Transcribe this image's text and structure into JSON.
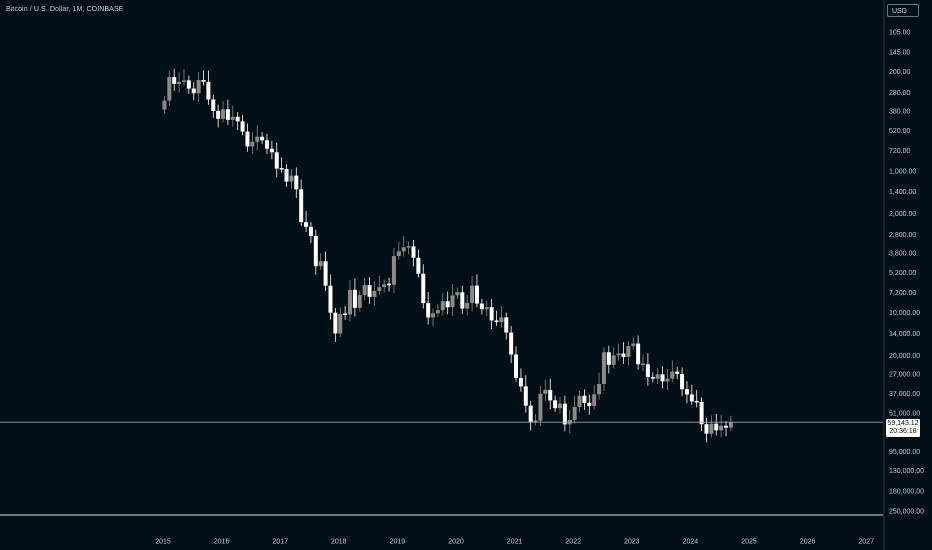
{
  "header": {
    "title": "Bitcoin / U.S. Dollar, 1M, COINBASE",
    "currency_button": "USD"
  },
  "price_tag": {
    "price": "59,143.12",
    "countdown": "20:36:18"
  },
  "colors": {
    "background": "#020f14",
    "candle_up": "#ffffff",
    "candle_down": "#8a8a8a",
    "price_line": "#9aa3a6"
  },
  "chart_data": {
    "type": "candlestick",
    "interval": "1M",
    "y_scale": "log",
    "y_axis_inverted": true,
    "current_price": 59143.12,
    "x_ticks": [
      "2015",
      "2016",
      "2017",
      "2018",
      "2019",
      "2020",
      "2021",
      "2022",
      "2023",
      "2024",
      "2025",
      "2026",
      "2027"
    ],
    "y_ticks": [
      "105.00",
      "145.00",
      "200.00",
      "280.00",
      "380.00",
      "520.00",
      "720.00",
      "1,000.00",
      "1,400.00",
      "2,000.00",
      "2,800.00",
      "3,800.00",
      "5,200.00",
      "7,200.00",
      "10,000.00",
      "14,000.00",
      "20,000.00",
      "27,000.00",
      "37,000.00",
      "51,000.00",
      "95,000.00",
      "130,000.00",
      "180,000.00",
      "250,000.00"
    ],
    "y_tick_values": [
      105,
      145,
      200,
      280,
      380,
      520,
      720,
      1000,
      1400,
      2000,
      2800,
      3800,
      5200,
      7200,
      10000,
      14000,
      20000,
      27000,
      37000,
      51000,
      95000,
      130000,
      180000,
      250000
    ],
    "start_year": 2015,
    "close": [
      320,
      218,
      244,
      236,
      230,
      263,
      284,
      229,
      236,
      314,
      378,
      430,
      368,
      437,
      416,
      448,
      529,
      673,
      624,
      575,
      609,
      698,
      740,
      964,
      970,
      1190,
      1080,
      1350,
      2300,
      2480,
      2880,
      4700,
      4340,
      6450,
      10000,
      14000,
      10200,
      10300,
      6900,
      9240,
      7500,
      6390,
      7730,
      7030,
      6600,
      6300,
      6340,
      3990,
      3690,
      3460,
      3410,
      4100,
      5320,
      8560,
      10800,
      10090,
      9600,
      8300,
      9150,
      7550,
      7170,
      9350,
      8520,
      6440,
      8620,
      9450,
      9140,
      11340,
      11650,
      10780,
      13800,
      19700,
      28900,
      33100,
      45200,
      58800,
      57700,
      37300,
      35000,
      41500,
      47100,
      43800,
      61300,
      57000,
      46200,
      38500,
      43200,
      45500,
      37600,
      31800,
      19000,
      23300,
      20000,
      19400,
      20500,
      17200,
      16500,
      23100,
      23100,
      28400,
      29200,
      27200,
      30500,
      29200,
      26000,
      27000,
      34600,
      37700,
      42200,
      42600,
      61100,
      71300,
      60600,
      67500,
      62700,
      64600,
      59143
    ],
    "low": [
      [],
      []
    ],
    "note": ""
  }
}
